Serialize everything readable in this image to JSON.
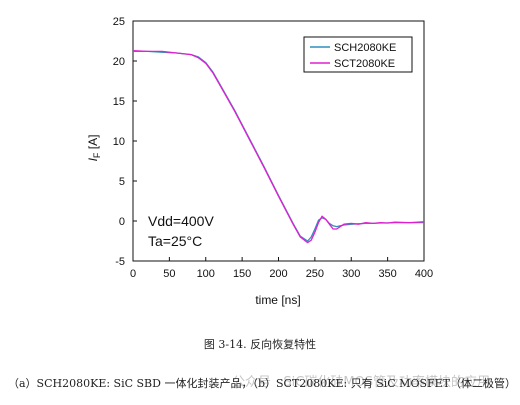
{
  "chart_data": {
    "type": "line",
    "title": "",
    "xlabel": "time [ns]",
    "ylabel": "I_F [A]",
    "xlim": [
      0,
      400
    ],
    "ylim": [
      -5,
      25
    ],
    "xticks": [
      "0",
      "50",
      "100",
      "150",
      "200",
      "250",
      "300",
      "350",
      "400"
    ],
    "yticks": [
      "-5",
      "0",
      "5",
      "10",
      "15",
      "20",
      "25"
    ],
    "grid": false,
    "legend_position": "top-right",
    "series": [
      {
        "name": "SCH2080KE",
        "color": "#2f8fbf",
        "x": [
          0,
          20,
          40,
          60,
          80,
          90,
          100,
          110,
          120,
          140,
          160,
          180,
          200,
          220,
          230,
          240,
          245,
          250,
          255,
          260,
          265,
          270,
          275,
          280,
          285,
          290,
          300,
          310,
          320,
          330,
          340,
          350,
          360,
          380,
          400
        ],
        "y": [
          21.2,
          21.2,
          21.1,
          21.0,
          20.8,
          20.5,
          19.8,
          18.6,
          17.0,
          13.8,
          10.3,
          6.8,
          3.2,
          -0.3,
          -1.9,
          -2.5,
          -2.0,
          -1.0,
          0.1,
          0.4,
          0.2,
          -0.3,
          -0.6,
          -0.7,
          -0.6,
          -0.5,
          -0.4,
          -0.35,
          -0.3,
          -0.3,
          -0.25,
          -0.25,
          -0.2,
          -0.2,
          -0.2
        ]
      },
      {
        "name": "SCT2080KE",
        "color": "#e020d0",
        "x": [
          0,
          20,
          40,
          60,
          80,
          90,
          100,
          110,
          120,
          140,
          160,
          180,
          200,
          220,
          230,
          240,
          245,
          250,
          255,
          260,
          265,
          270,
          275,
          280,
          285,
          290,
          300,
          310,
          320,
          330,
          340,
          350,
          360,
          380,
          400
        ],
        "y": [
          21.3,
          21.2,
          21.2,
          21.0,
          20.8,
          20.4,
          19.7,
          18.5,
          16.9,
          13.7,
          10.2,
          6.7,
          3.1,
          -0.4,
          -2.0,
          -2.7,
          -2.4,
          -1.4,
          -0.2,
          0.6,
          0.2,
          -0.4,
          -1.0,
          -1.0,
          -0.7,
          -0.4,
          -0.3,
          -0.4,
          -0.2,
          -0.3,
          -0.2,
          -0.25,
          -0.15,
          -0.2,
          -0.1
        ]
      }
    ],
    "annotations": [
      "Vdd=400V",
      "Ta=25°C"
    ]
  },
  "figure_caption": "图 3-14. 反向恢复特性",
  "sub_caption": "（a）SCH2080KE: SiC SBD 一体化封装产品，（b）SCT2080KE: 只有 SiC MOSFET（体二极管）",
  "watermark_text": "公众号 · SiC碳化硅MOS管及功率模块的应用"
}
